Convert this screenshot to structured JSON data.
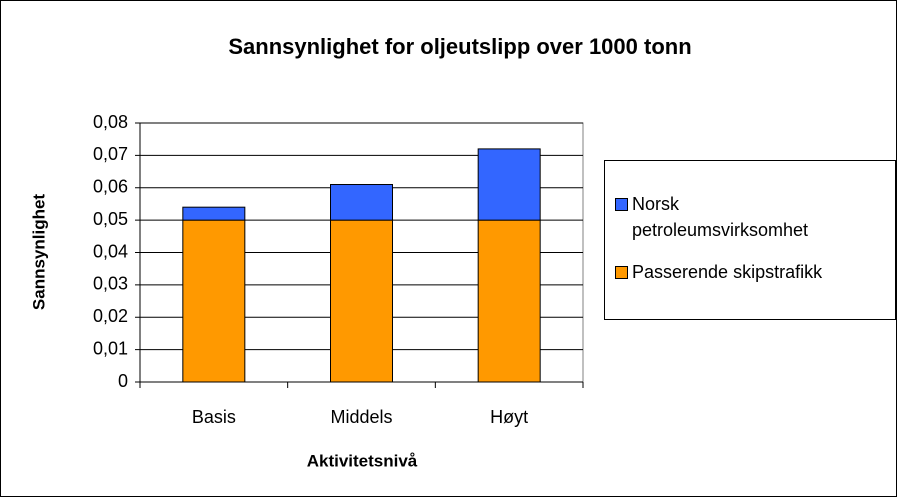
{
  "chart_data": {
    "type": "bar",
    "stacked": true,
    "title": "Sannsynlighet for oljeutslipp over 1000 tonn",
    "x_label": "Aktivitetsnivå",
    "y_label": "Sannsynlighet",
    "categories": [
      "Basis",
      "Middels",
      "Høyt"
    ],
    "series": [
      {
        "name": "Passerende skipstrafikk",
        "color": "#ff9900",
        "values": [
          0.05,
          0.05,
          0.05
        ]
      },
      {
        "name": "Norsk petroleumsvirksomhet",
        "color": "#3366ff",
        "values": [
          0.004,
          0.011,
          0.022
        ]
      }
    ],
    "ylim": [
      0,
      0.08
    ],
    "yticks": [
      0,
      {
        "value": 0.01,
        "label": "0,01"
      },
      {
        "value": 0.02,
        "label": "0,02"
      },
      {
        "value": 0.03,
        "label": "0,03"
      },
      {
        "value": 0.04,
        "label": "0,04"
      },
      {
        "value": 0.05,
        "label": "0,05"
      },
      {
        "value": 0.06,
        "label": "0,06"
      },
      {
        "value": 0.07,
        "label": "0,07"
      },
      {
        "value": 0.08,
        "label": "0,08"
      }
    ],
    "grid": true,
    "legend": "right"
  }
}
